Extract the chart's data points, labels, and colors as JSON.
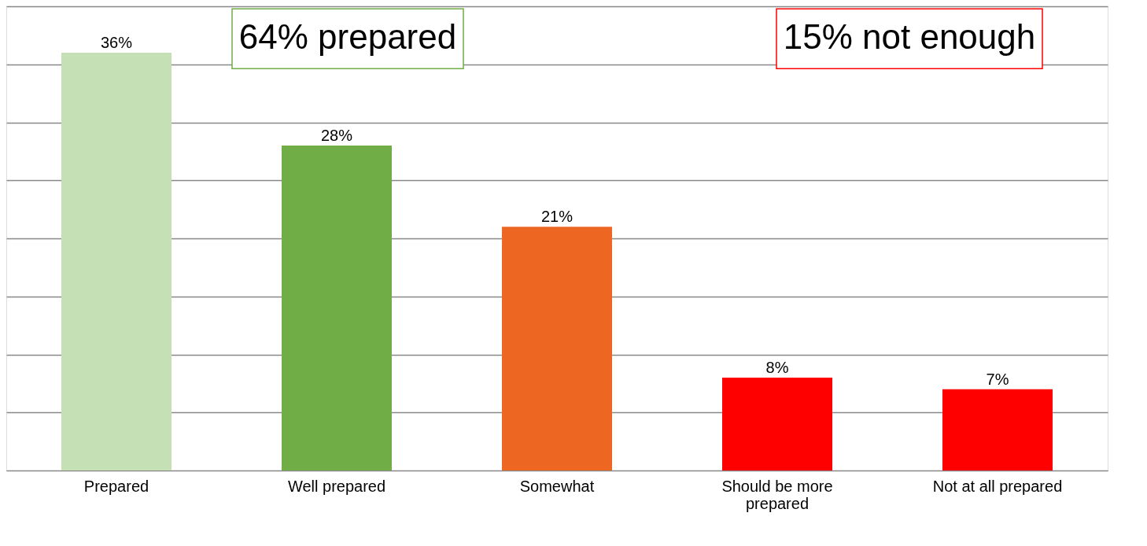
{
  "chart_data": {
    "type": "bar",
    "categories": [
      "Prepared",
      "Well prepared",
      "Somewhat",
      "Should be more prepared",
      "Not at all prepared"
    ],
    "values": [
      36,
      28,
      21,
      8,
      7
    ],
    "colors": [
      "#c5e0b4",
      "#70ad47",
      "#ed6622",
      "#ff0000",
      "#ff0000"
    ],
    "value_labels": [
      "36%",
      "28%",
      "21%",
      "8%",
      "7%"
    ],
    "tick_labels": "x",
    "grid": "y",
    "annotations": [
      "64% prepared",
      "15% not enough"
    ]
  }
}
